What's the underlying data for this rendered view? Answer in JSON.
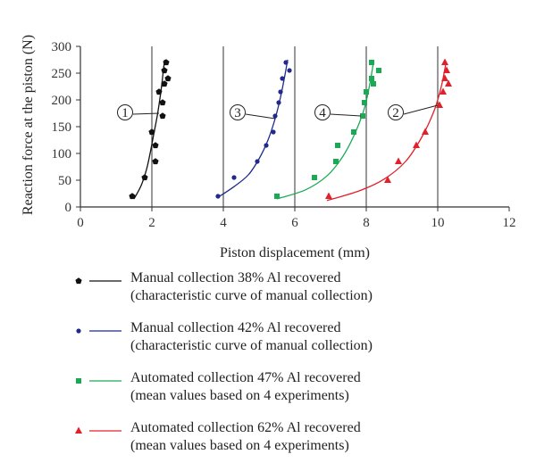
{
  "chart_data": {
    "type": "scatter",
    "title": "",
    "xlabel": "Piston displacement (mm)",
    "ylabel": "Reaction force at the piston (N)",
    "xlim": [
      0,
      12
    ],
    "ylim": [
      0,
      300
    ],
    "xticks": [
      0,
      2,
      4,
      6,
      8,
      10,
      12
    ],
    "yticks": [
      0,
      50,
      100,
      150,
      200,
      250,
      300
    ],
    "grid": "vertical lines at x = 2, 4, 6, 8, 10",
    "legend_position": "bottom",
    "series": [
      {
        "name": "Manual collection 38% Al recovered",
        "name_line2": "(characteristic curve of manual collection)",
        "annotation": "1",
        "marker": "pentagon",
        "color": "#111111",
        "points": [
          [
            1.45,
            20
          ],
          [
            1.8,
            55
          ],
          [
            2.0,
            140
          ],
          [
            2.1,
            115
          ],
          [
            2.1,
            85
          ],
          [
            2.2,
            215
          ],
          [
            2.3,
            170
          ],
          [
            2.3,
            195
          ],
          [
            2.35,
            255
          ],
          [
            2.35,
            230
          ],
          [
            2.4,
            270
          ],
          [
            2.45,
            240
          ]
        ],
        "curve": [
          [
            1.5,
            15
          ],
          [
            1.7,
            40
          ],
          [
            1.85,
            70
          ],
          [
            1.95,
            100
          ],
          [
            2.05,
            135
          ],
          [
            2.15,
            170
          ],
          [
            2.22,
            200
          ],
          [
            2.28,
            230
          ],
          [
            2.33,
            260
          ],
          [
            2.36,
            275
          ]
        ]
      },
      {
        "name": "Manual collection 42% Al recovered",
        "name_line2": "(characteristic curve of manual collection)",
        "annotation": "3",
        "marker": "circle",
        "color": "#1f2a8a",
        "points": [
          [
            3.85,
            20
          ],
          [
            4.3,
            55
          ],
          [
            4.95,
            85
          ],
          [
            5.2,
            115
          ],
          [
            5.4,
            140
          ],
          [
            5.45,
            170
          ],
          [
            5.55,
            195
          ],
          [
            5.6,
            215
          ],
          [
            5.65,
            240
          ],
          [
            5.75,
            270
          ],
          [
            5.85,
            255
          ]
        ],
        "curve": [
          [
            3.85,
            18
          ],
          [
            4.3,
            38
          ],
          [
            4.7,
            60
          ],
          [
            5.0,
            90
          ],
          [
            5.25,
            125
          ],
          [
            5.45,
            165
          ],
          [
            5.6,
            205
          ],
          [
            5.72,
            245
          ],
          [
            5.8,
            275
          ]
        ]
      },
      {
        "name": "Automated collection 47% Al recovered",
        "name_line2": "(mean values based on 4 experiments)",
        "annotation": "4",
        "marker": "square",
        "color": "#1aaa55",
        "points": [
          [
            5.5,
            20
          ],
          [
            6.55,
            55
          ],
          [
            7.15,
            85
          ],
          [
            7.2,
            115
          ],
          [
            7.65,
            140
          ],
          [
            7.9,
            170
          ],
          [
            7.95,
            195
          ],
          [
            8.0,
            215
          ],
          [
            8.15,
            240
          ],
          [
            8.2,
            230
          ],
          [
            8.15,
            270
          ],
          [
            8.35,
            255
          ]
        ],
        "curve": [
          [
            5.5,
            15
          ],
          [
            6.3,
            32
          ],
          [
            6.9,
            58
          ],
          [
            7.35,
            95
          ],
          [
            7.7,
            140
          ],
          [
            7.95,
            185
          ],
          [
            8.1,
            230
          ],
          [
            8.2,
            270
          ]
        ]
      },
      {
        "name": "Automated collection 62% Al recovered",
        "name_line2": "(mean values based on 4 experiments)",
        "annotation": "2",
        "marker": "triangle",
        "color": "#e0202a",
        "points": [
          [
            6.95,
            20
          ],
          [
            8.6,
            50
          ],
          [
            8.9,
            85
          ],
          [
            9.4,
            115
          ],
          [
            9.65,
            140
          ],
          [
            10.05,
            190
          ],
          [
            10.15,
            215
          ],
          [
            10.2,
            240
          ],
          [
            10.2,
            270
          ],
          [
            10.25,
            255
          ],
          [
            10.3,
            230
          ]
        ],
        "curve": [
          [
            6.9,
            12
          ],
          [
            7.8,
            30
          ],
          [
            8.5,
            52
          ],
          [
            9.1,
            85
          ],
          [
            9.55,
            130
          ],
          [
            9.9,
            180
          ],
          [
            10.1,
            225
          ],
          [
            10.22,
            265
          ]
        ]
      }
    ]
  }
}
